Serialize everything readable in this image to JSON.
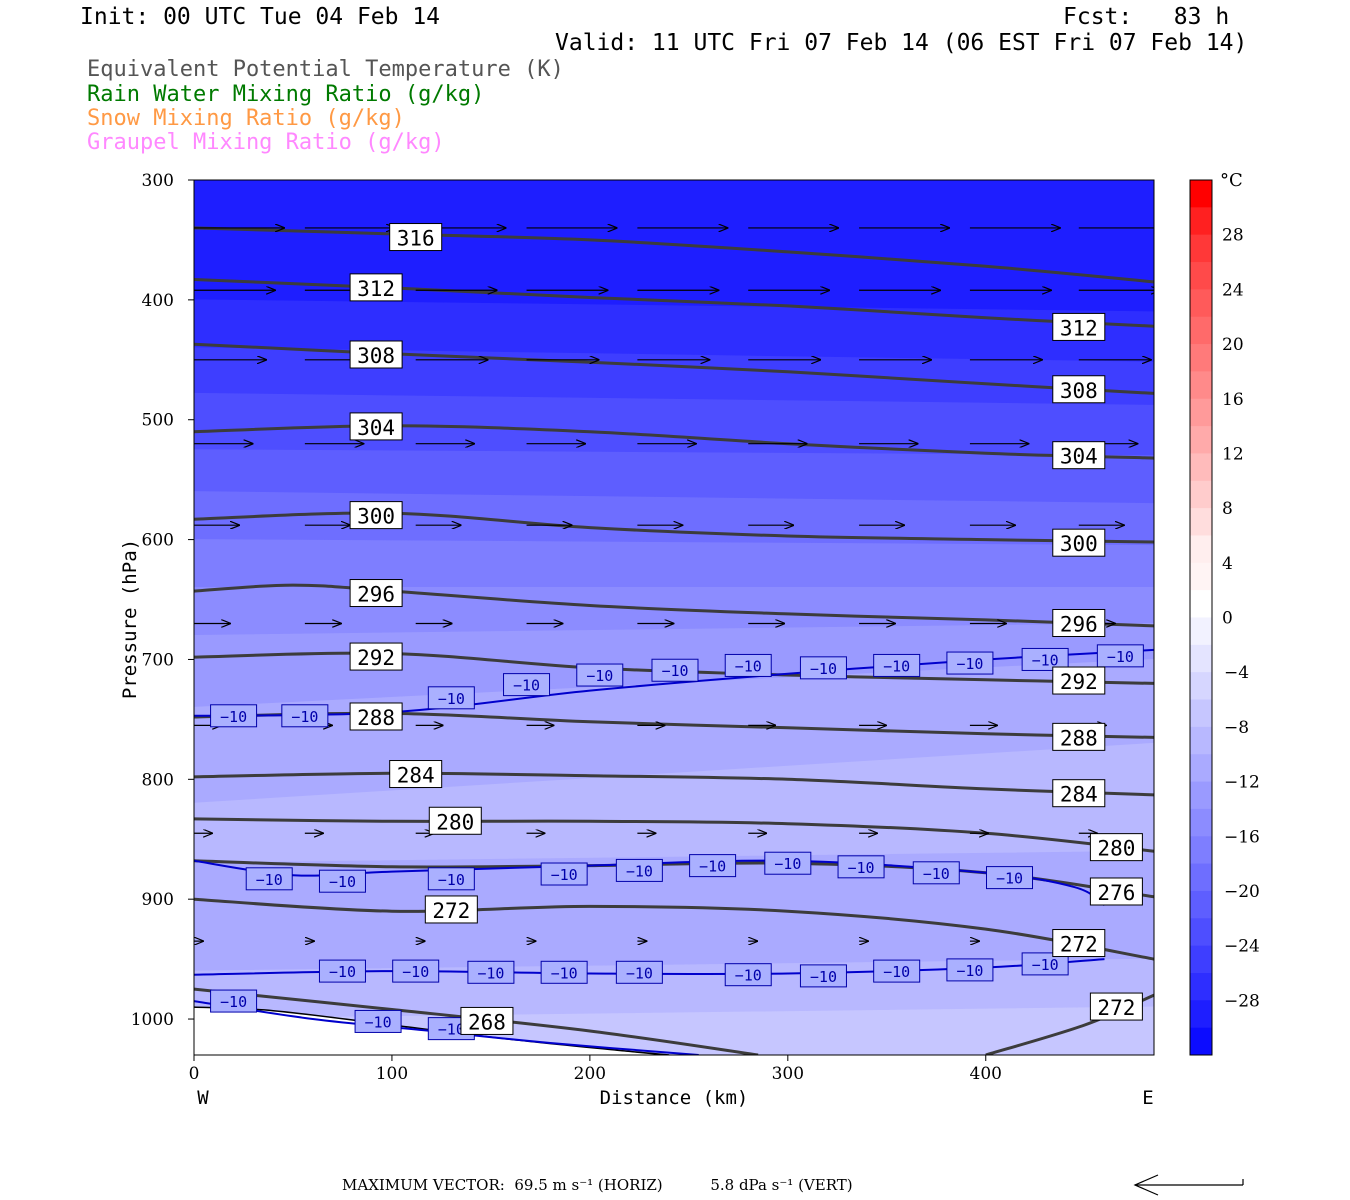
{
  "header": {
    "init": "Init: 00 UTC Tue 04 Feb 14",
    "fcst": "Fcst:   83 h",
    "valid": "Valid: 11 UTC Fri 07 Feb 14 (06 EST Fri 07 Feb 14)"
  },
  "legend": [
    {
      "text": "Equivalent Potential Temperature (K)",
      "color": "#555555"
    },
    {
      "text": "Rain Water Mixing Ratio (g/kg)",
      "color": "#007a00"
    },
    {
      "text": "Snow Mixing Ratio (g/kg)",
      "color": "#ff9944"
    },
    {
      "text": "Graupel Mixing Ratio (g/kg)",
      "color": "#ff88ff"
    }
  ],
  "chart_data": {
    "type": "cross-section",
    "xlabel": "Distance (km)",
    "ylabel": "Pressure (hPa)",
    "xlim": [
      0,
      485
    ],
    "ylim": [
      300,
      1030
    ],
    "y_log_scale": false,
    "x_ticks": [
      0,
      100,
      200,
      300,
      400
    ],
    "y_ticks": [
      300,
      400,
      500,
      600,
      700,
      800,
      900,
      1000
    ],
    "west_label": "W",
    "east_label": "E",
    "colorbar": {
      "unit": "°C",
      "tick_labels": [
        "28",
        "24",
        "20",
        "16",
        "12",
        "8",
        "4",
        "0",
        "−4",
        "−8",
        "−12",
        "−16",
        "−20",
        "−24",
        "−28"
      ],
      "levels": [
        32,
        30,
        28,
        26,
        24,
        22,
        20,
        18,
        16,
        14,
        12,
        10,
        8,
        6,
        4,
        2,
        0,
        -2,
        -4,
        -6,
        -8,
        -10,
        -12,
        -14,
        -16,
        -18,
        -20,
        -22,
        -24,
        -26,
        -28,
        -30,
        -32
      ],
      "colors": [
        "#ff0000",
        "#ff2020",
        "#ff3838",
        "#ff4a4a",
        "#ff5a5a",
        "#ff6a6a",
        "#ff7a7a",
        "#ff8a8a",
        "#ff9a9a",
        "#ffaaaa",
        "#ffbbbb",
        "#ffcccc",
        "#ffdddd",
        "#ffeeee",
        "#fff4f4",
        "#ffffff",
        "#f2f2ff",
        "#e4e4ff",
        "#d6d6ff",
        "#c6c6ff",
        "#b8b8ff",
        "#aaaaff",
        "#9a9aff",
        "#8c8cff",
        "#7e7eff",
        "#6e6eff",
        "#5e5eff",
        "#4e4eff",
        "#3e3eff",
        "#2e2eff",
        "#1e1eff",
        "#0c0cff"
      ]
    },
    "temperature_fill_bands": [
      {
        "p_top": [
          300,
          300
        ],
        "p_bot": [
          338,
          338
        ],
        "t": -29
      },
      {
        "p_top": [
          338,
          338
        ],
        "p_bot": [
          400,
          410
        ],
        "t": -29
      },
      {
        "p_top": [
          400,
          410
        ],
        "p_bot": [
          440,
          452
        ],
        "t": -27
      },
      {
        "p_top": [
          440,
          452
        ],
        "p_bot": [
          478,
          488
        ],
        "t": -25
      },
      {
        "p_top": [
          478,
          488
        ],
        "p_bot": [
          525,
          530
        ],
        "t": -23
      },
      {
        "p_top": [
          525,
          530
        ],
        "p_bot": [
          560,
          570
        ],
        "t": -21
      },
      {
        "p_top": [
          560,
          570
        ],
        "p_bot": [
          600,
          605
        ],
        "t": -19
      },
      {
        "p_top": [
          600,
          605
        ],
        "p_bot": [
          640,
          640
        ],
        "t": -17
      },
      {
        "p_top": [
          640,
          640
        ],
        "p_bot": [
          680,
          670
        ],
        "t": -15
      },
      {
        "p_top": [
          680,
          670
        ],
        "p_bot": [
          740,
          700
        ],
        "t": -13
      },
      {
        "p_top": [
          740,
          700
        ],
        "p_bot": [
          820,
          770
        ],
        "t": -11
      },
      {
        "p_top": [
          820,
          770
        ],
        "p_bot": [
          870,
          860
        ],
        "t": -9
      },
      {
        "p_top": [
          870,
          860
        ],
        "p_bot": [
          960,
          950
        ],
        "t": -10.5
      },
      {
        "p_top": [
          960,
          950
        ],
        "p_bot": [
          1000,
          990
        ],
        "t": -8.5
      },
      {
        "p_top": [
          1000,
          990
        ],
        "p_bot": [
          1030,
          1030
        ],
        "t": -7
      }
    ],
    "theta_e_contours": [
      {
        "value": 316,
        "p": [
          [
            0,
            340
          ],
          [
            100,
            345
          ],
          [
            200,
            350
          ],
          [
            300,
            360
          ],
          [
            400,
            372
          ],
          [
            485,
            385
          ]
        ],
        "labels": [
          [
            112,
            348
          ]
        ]
      },
      {
        "value": 312,
        "p": [
          [
            0,
            383
          ],
          [
            100,
            390
          ],
          [
            200,
            398
          ],
          [
            300,
            405
          ],
          [
            400,
            415
          ],
          [
            485,
            422
          ]
        ],
        "labels": [
          [
            92,
            390
          ],
          [
            447,
            423
          ]
        ]
      },
      {
        "value": 308,
        "p": [
          [
            0,
            437
          ],
          [
            100,
            445
          ],
          [
            200,
            452
          ],
          [
            300,
            460
          ],
          [
            400,
            470
          ],
          [
            485,
            478
          ]
        ],
        "labels": [
          [
            92,
            446
          ],
          [
            447,
            475
          ]
        ]
      },
      {
        "value": 304,
        "p": [
          [
            0,
            510
          ],
          [
            100,
            505
          ],
          [
            200,
            510
          ],
          [
            300,
            520
          ],
          [
            400,
            528
          ],
          [
            485,
            532
          ]
        ],
        "labels": [
          [
            92,
            506
          ],
          [
            447,
            530
          ]
        ]
      },
      {
        "value": 300,
        "p": [
          [
            0,
            583
          ],
          [
            100,
            578
          ],
          [
            200,
            590
          ],
          [
            300,
            597
          ],
          [
            400,
            600
          ],
          [
            485,
            602
          ]
        ],
        "labels": [
          [
            92,
            580
          ],
          [
            447,
            603
          ]
        ]
      },
      {
        "value": 296,
        "p": [
          [
            0,
            643
          ],
          [
            50,
            638
          ],
          [
            100,
            643
          ],
          [
            200,
            655
          ],
          [
            300,
            662
          ],
          [
            400,
            667
          ],
          [
            485,
            672
          ]
        ],
        "labels": [
          [
            92,
            645
          ],
          [
            447,
            670
          ]
        ]
      },
      {
        "value": 292,
        "p": [
          [
            0,
            698
          ],
          [
            100,
            695
          ],
          [
            200,
            707
          ],
          [
            300,
            713
          ],
          [
            400,
            717
          ],
          [
            485,
            720
          ]
        ],
        "labels": [
          [
            92,
            698
          ],
          [
            447,
            718
          ]
        ]
      },
      {
        "value": 288,
        "p": [
          [
            0,
            748
          ],
          [
            100,
            745
          ],
          [
            200,
            752
          ],
          [
            300,
            757
          ],
          [
            400,
            762
          ],
          [
            485,
            765
          ]
        ],
        "labels": [
          [
            92,
            748
          ],
          [
            447,
            765
          ]
        ]
      },
      {
        "value": 284,
        "p": [
          [
            0,
            798
          ],
          [
            100,
            795
          ],
          [
            200,
            797
          ],
          [
            300,
            800
          ],
          [
            400,
            808
          ],
          [
            485,
            813
          ]
        ],
        "labels": [
          [
            112,
            796
          ],
          [
            447,
            812
          ]
        ]
      },
      {
        "value": 280,
        "p": [
          [
            0,
            833
          ],
          [
            100,
            835
          ],
          [
            200,
            835
          ],
          [
            300,
            837
          ],
          [
            400,
            845
          ],
          [
            485,
            860
          ]
        ],
        "labels": [
          [
            132,
            835
          ],
          [
            466,
            857
          ]
        ]
      },
      {
        "value": 276,
        "p": [
          [
            0,
            868
          ],
          [
            100,
            873
          ],
          [
            200,
            872
          ],
          [
            300,
            870
          ],
          [
            400,
            878
          ],
          [
            485,
            898
          ]
        ],
        "labels": [
          [
            466,
            894
          ]
        ]
      },
      {
        "value": 272,
        "p": [
          [
            0,
            900
          ],
          [
            100,
            910
          ],
          [
            200,
            906
          ],
          [
            300,
            910
          ],
          [
            400,
            925
          ],
          [
            485,
            950
          ]
        ],
        "labels": [
          [
            130,
            909
          ],
          [
            447,
            937
          ]
        ]
      },
      {
        "value": 272,
        "p": [
          [
            400,
            1030
          ],
          [
            450,
            1005
          ],
          [
            485,
            980
          ]
        ],
        "labels": [
          [
            466,
            990
          ]
        ]
      },
      {
        "value": 268,
        "p": [
          [
            0,
            975
          ],
          [
            100,
            992
          ],
          [
            200,
            1010
          ],
          [
            285,
            1030
          ]
        ],
        "labels": [
          [
            148,
            1002
          ]
        ]
      }
    ],
    "iso_minus10_contours": [
      {
        "value": -10,
        "p": [
          [
            0,
            747
          ],
          [
            100,
            744
          ],
          [
            200,
            726
          ],
          [
            300,
            712
          ],
          [
            400,
            700
          ],
          [
            485,
            692
          ]
        ],
        "labels": [
          [
            20,
            747
          ],
          [
            56,
            747
          ],
          [
            130,
            732
          ],
          [
            168,
            721
          ],
          [
            205,
            713
          ],
          [
            243,
            709
          ],
          [
            280,
            705
          ],
          [
            318,
            707
          ],
          [
            355,
            705
          ],
          [
            392,
            703
          ],
          [
            430,
            700
          ],
          [
            468,
            697
          ]
        ]
      },
      {
        "value": -10,
        "p": [
          [
            0,
            868
          ],
          [
            50,
            880
          ],
          [
            100,
            877
          ],
          [
            200,
            872
          ],
          [
            300,
            868
          ],
          [
            400,
            878
          ],
          [
            445,
            890
          ],
          [
            460,
            905
          ]
        ],
        "labels": [
          [
            38,
            883
          ],
          [
            75,
            885
          ],
          [
            130,
            883
          ],
          [
            187,
            879
          ],
          [
            225,
            876
          ],
          [
            262,
            872
          ],
          [
            300,
            870
          ],
          [
            337,
            873
          ],
          [
            375,
            878
          ],
          [
            412,
            882
          ]
        ]
      },
      {
        "value": -10,
        "p": [
          [
            0,
            963
          ],
          [
            100,
            960
          ],
          [
            200,
            962
          ],
          [
            300,
            962
          ],
          [
            400,
            957
          ],
          [
            460,
            950
          ]
        ],
        "labels": [
          [
            75,
            960
          ],
          [
            112,
            960
          ],
          [
            150,
            961
          ],
          [
            187,
            961
          ],
          [
            225,
            961
          ],
          [
            280,
            963
          ],
          [
            318,
            964
          ],
          [
            355,
            960
          ],
          [
            392,
            959
          ],
          [
            430,
            954
          ]
        ]
      },
      {
        "value": -10,
        "p": [
          [
            0,
            985
          ],
          [
            60,
            1000
          ],
          [
            120,
            1010
          ],
          [
            180,
            1020
          ],
          [
            255,
            1030
          ]
        ],
        "labels": [
          [
            20,
            985
          ],
          [
            93,
            1002
          ],
          [
            130,
            1008
          ]
        ]
      }
    ],
    "vector_rows": [
      {
        "p": 340,
        "x": [
          0,
          56,
          112,
          168,
          224,
          280,
          336,
          392,
          447
        ],
        "len": 1.0
      },
      {
        "p": 392,
        "x": [
          0,
          56,
          112,
          168,
          224,
          280,
          336,
          392,
          447
        ],
        "len": 0.9
      },
      {
        "p": 450,
        "x": [
          0,
          56,
          112,
          168,
          224,
          280,
          336,
          392,
          447
        ],
        "len": 0.8
      },
      {
        "p": 520,
        "x": [
          0,
          56,
          112,
          168,
          224,
          280,
          336,
          392,
          447
        ],
        "len": 0.65
      },
      {
        "p": 588,
        "x": [
          0,
          56,
          112,
          168,
          224,
          280,
          336,
          392,
          447
        ],
        "len": 0.5
      },
      {
        "p": 670,
        "x": [
          0,
          56,
          112,
          168,
          224,
          280,
          336,
          392,
          447
        ],
        "len": 0.4
      },
      {
        "p": 755,
        "x": [
          0,
          56,
          112,
          168,
          224,
          280,
          336,
          392,
          447
        ],
        "len": 0.3
      },
      {
        "p": 845,
        "x": [
          0,
          56,
          112,
          168,
          224,
          280,
          336,
          392,
          447
        ],
        "len": 0.2
      },
      {
        "p": 935,
        "x": [
          0,
          56,
          112,
          168,
          224,
          280,
          336,
          392,
          447
        ],
        "len": 0.1
      }
    ],
    "terrain": [
      [
        0,
        990
      ],
      [
        40,
        993
      ],
      [
        100,
        1005
      ],
      [
        160,
        1017
      ],
      [
        220,
        1027
      ],
      [
        240,
        1030
      ]
    ]
  },
  "footer": {
    "max_vector": "MAXIMUM VECTOR:  69.5 m s⁻¹ (HORIZ)          5.8 dPa s⁻¹ (VERT)"
  }
}
